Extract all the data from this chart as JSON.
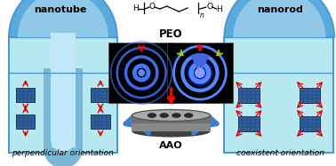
{
  "title_left": "nanotube",
  "title_right": "nanorod",
  "label_left": "perpendicular orientation",
  "label_right": "coexistent orientation",
  "label_center": "PEO",
  "label_aao": "AAO",
  "bg_color": "#ffffff",
  "light_cyan": "#b8e8f0",
  "mid_blue": "#4a9ad4",
  "dome_blue": "#5aaae0",
  "tube_blue": "#7ab8d8",
  "tube_inner": "#c0e8f8",
  "crystal_blue": "#3060a0",
  "crystal_edge": "#1a3a60",
  "crystal_line": "#2050808",
  "arrow_blue": "#3a80d0",
  "arrow_red": "#dd0000",
  "arrow_yellow": "#bbcc00",
  "disk_top": "#aaaaaa",
  "disk_side": "#707070",
  "disk_bottom": "#505050",
  "hole_color": "#303030",
  "text_black": "#111111",
  "saxs_ring": "#3366ff",
  "saxs_bright": "#6699ff"
}
